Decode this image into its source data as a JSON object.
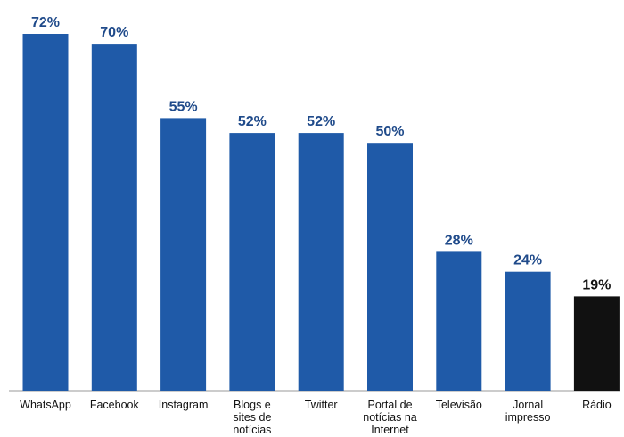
{
  "chart_data": {
    "type": "bar",
    "categories": [
      [
        "WhatsApp"
      ],
      [
        "Facebook"
      ],
      [
        "Instagram"
      ],
      [
        "Blogs e",
        "sites de",
        "notícias"
      ],
      [
        "Twitter"
      ],
      [
        "Portal de",
        "notícias na",
        "Internet"
      ],
      [
        "Televisão"
      ],
      [
        "Jornal",
        "impresso"
      ],
      [
        "Rádio"
      ]
    ],
    "values": [
      72,
      70,
      55,
      52,
      52,
      50,
      28,
      24,
      19
    ],
    "value_labels": [
      "72%",
      "70%",
      "55%",
      "52%",
      "52%",
      "50%",
      "28%",
      "24%",
      "19%"
    ],
    "ylim": [
      0,
      72
    ],
    "grid": false,
    "colors": {
      "bar": "#1f5aa8",
      "bar_highlight": "#111111",
      "label": "#1f4a8a",
      "label_highlight": "#111111"
    },
    "highlight_index": 8
  }
}
